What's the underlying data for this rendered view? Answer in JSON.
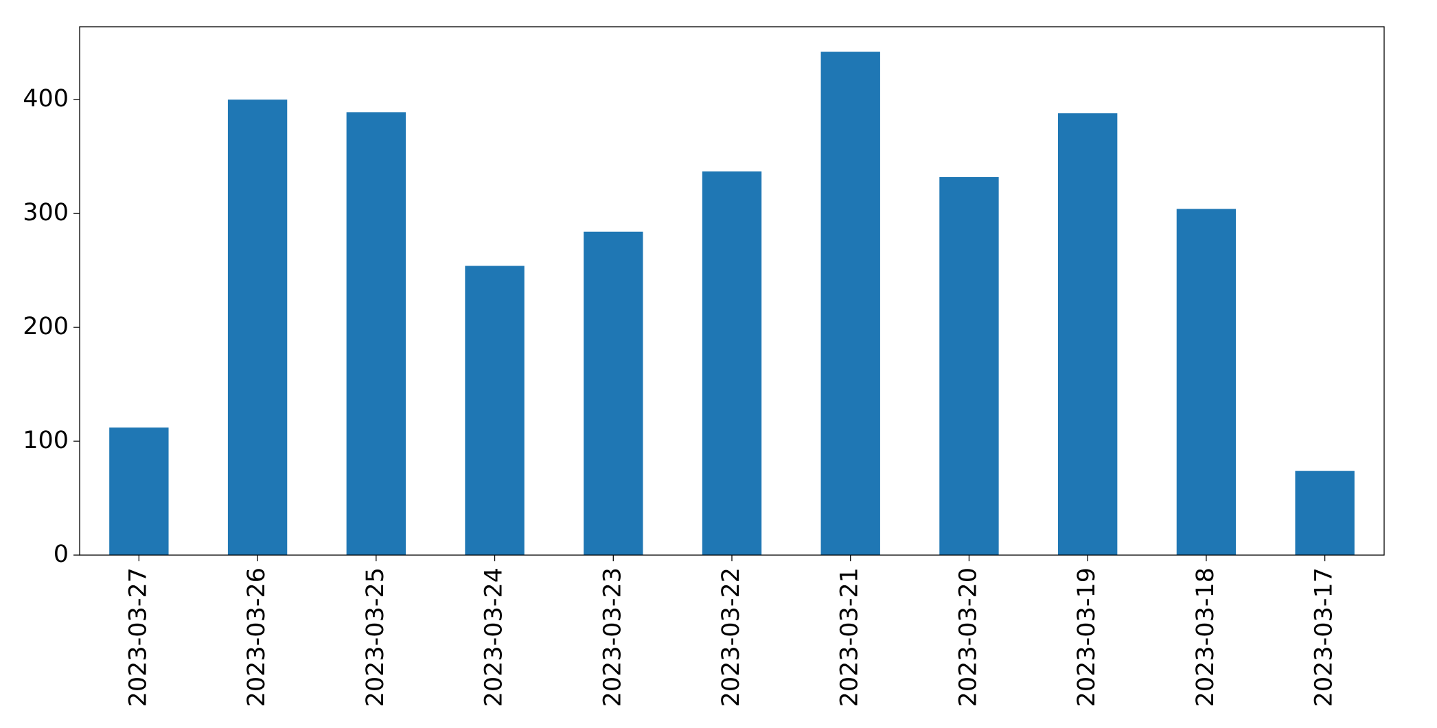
{
  "chart_data": {
    "type": "bar",
    "x": [
      "2023-03-27",
      "2023-03-26",
      "2023-03-25",
      "2023-03-24",
      "2023-03-23",
      "2023-03-22",
      "2023-03-21",
      "2023-03-20",
      "2023-03-19",
      "2023-03-18",
      "2023-03-17"
    ],
    "values": [
      112,
      400,
      389,
      254,
      284,
      337,
      442,
      332,
      388,
      304,
      74
    ],
    "color": "#1f77b4",
    "ylim": [
      0,
      464
    ],
    "yticks": [
      0,
      100,
      200,
      300,
      400
    ],
    "grid": false
  }
}
